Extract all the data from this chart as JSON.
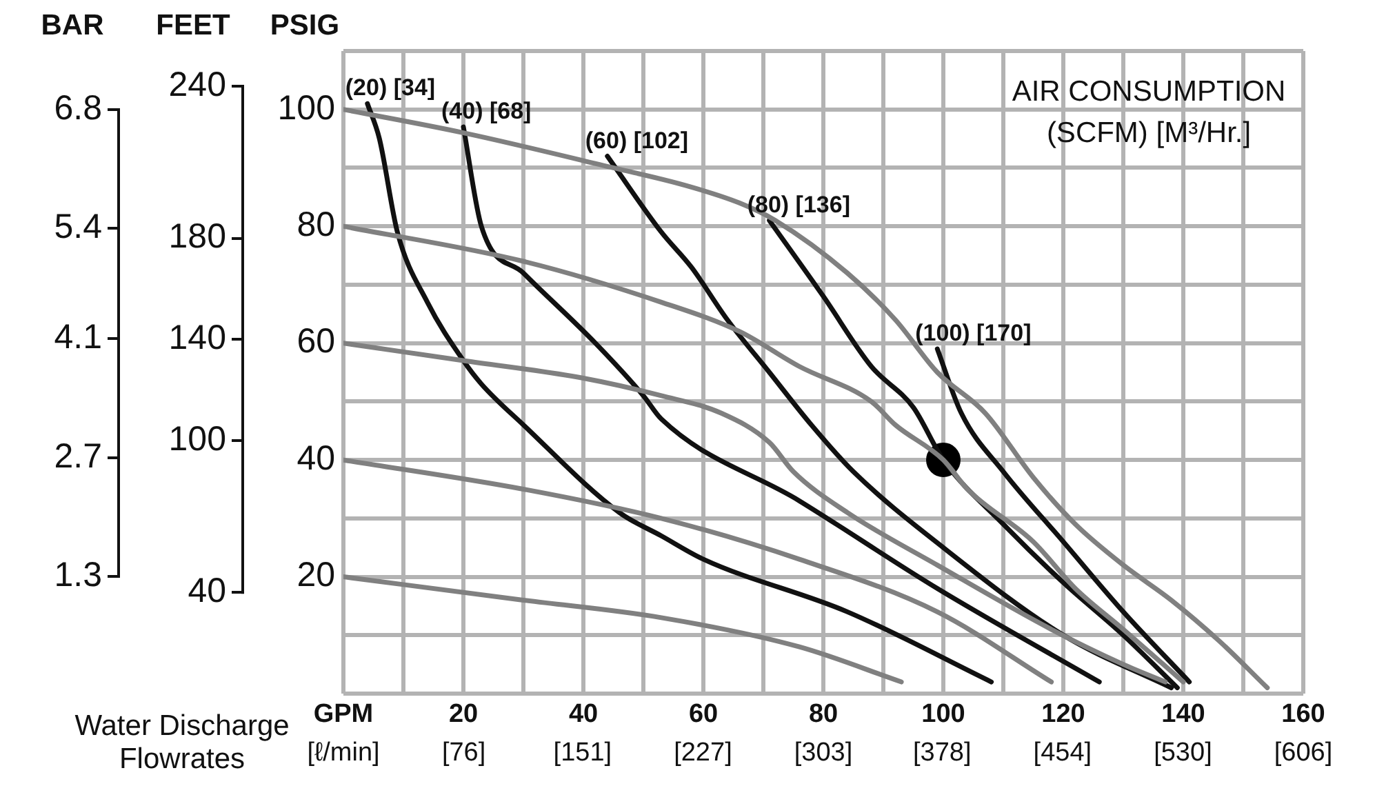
{
  "chart_data": {
    "type": "line",
    "xlabel": "Water Discharge Flowrates",
    "ylabel": "PSIG",
    "y2label": "BAR",
    "y3label": "FEET",
    "legend_title": "AIR CONSUMPTION\n(SCFM) [M³/Hr.]",
    "grid": true,
    "legend": false,
    "marker": "none",
    "line_style": "solid",
    "xlim": [
      0,
      160
    ],
    "xticks": [
      {
        "value": 0,
        "label": "GPM"
      },
      {
        "value": 10,
        "label": null
      },
      20,
      {
        "value": 30,
        "label": null
      },
      40,
      {
        "value": 50,
        "label": null
      },
      60,
      {
        "value": 70,
        "label": null
      },
      80,
      {
        "value": 90,
        "label": null
      },
      100,
      {
        "value": 110,
        "label": null
      },
      120,
      {
        "value": 130,
        "label": null
      },
      140,
      {
        "value": 150,
        "label": null
      },
      160
    ],
    "x2lim": [
      0,
      606
    ],
    "x2ticks": [
      {
        "value": 0,
        "label": "[ℓ/min]"
      },
      {
        "value": 76,
        "label": "[76]"
      },
      {
        "value": 151,
        "label": "[151]"
      },
      {
        "value": 227,
        "label": "[227]"
      },
      {
        "value": 303,
        "label": "[303]"
      },
      {
        "value": 378,
        "label": "[378]"
      },
      {
        "value": 454,
        "label": "[454]"
      },
      {
        "value": 530,
        "label": "[530]"
      },
      {
        "value": 606,
        "label": "[606]"
      }
    ],
    "ylim": [
      0,
      110
    ],
    "yticks": [
      {
        "value": 0,
        "label": null
      },
      {
        "value": 10,
        "label": null
      },
      20,
      {
        "value": 30,
        "label": null
      },
      40,
      {
        "value": 50,
        "label": null
      },
      60,
      {
        "value": 70,
        "label": null
      },
      80,
      {
        "value": 90,
        "label": null
      },
      100,
      {
        "value": 110,
        "label": null
      }
    ],
    "y2lim": [
      -0.08,
      7.49
    ],
    "y2ticks": [
      1.3,
      2.7,
      4.1,
      5.4,
      6.8
    ],
    "y3lim": [
      0,
      254
    ],
    "y3ticks": [
      40,
      100,
      140,
      180,
      240
    ],
    "series": [
      {
        "color": "#808080",
        "x": [
          0,
          20,
          45,
          57,
          66,
          72,
          84,
          92,
          99,
          107,
          115,
          122,
          130,
          138,
          146,
          154
        ],
        "values": [
          100,
          96,
          90,
          87,
          84,
          81,
          72,
          64,
          55,
          48,
          37,
          29,
          22,
          16,
          9,
          1
        ]
      },
      {
        "color": "#808080",
        "x": [
          0,
          30,
          53,
          66,
          76,
          88,
          92,
          100,
          104,
          115,
          122,
          130,
          140
        ],
        "values": [
          80,
          74,
          67,
          62,
          56,
          50,
          46,
          40,
          35,
          26,
          18,
          11,
          2
        ]
      },
      {
        "color": "#808080",
        "x": [
          0,
          20,
          40,
          53,
          63,
          71,
          75,
          84,
          99,
          118,
          130,
          137
        ],
        "values": [
          60,
          57,
          54,
          51,
          48,
          43,
          38,
          31,
          22,
          11,
          5,
          2
        ]
      },
      {
        "color": "#808080",
        "x": [
          0,
          30,
          53,
          76,
          99,
          118
        ],
        "values": [
          40,
          35,
          30,
          23,
          14,
          2
        ]
      },
      {
        "color": "#808080",
        "x": [
          0,
          30,
          53,
          76,
          93
        ],
        "values": [
          20,
          16,
          13,
          8,
          2
        ]
      },
      {
        "name": "(20) [34]",
        "color": "#111111",
        "x": [
          4,
          6,
          9,
          14,
          20,
          23,
          30,
          46,
          53,
          60,
          84,
          108
        ],
        "values": [
          101,
          95,
          79,
          67,
          57,
          53,
          46,
          31,
          27,
          23,
          14,
          2
        ]
      },
      {
        "name": "(40) [68]",
        "color": "#111111",
        "x": [
          20,
          23,
          30,
          42,
          50,
          53,
          76,
          99,
          126
        ],
        "values": [
          97,
          80,
          72,
          60,
          51,
          47,
          33,
          18,
          2
        ]
      },
      {
        "name": "(60) [102]",
        "color": "#111111",
        "x": [
          44,
          53,
          58,
          64,
          71,
          78,
          85,
          100,
          120,
          138
        ],
        "values": [
          92,
          79,
          73,
          64,
          55,
          46,
          38,
          25,
          10,
          1
        ]
      },
      {
        "name": "(80) [136]",
        "color": "#111111",
        "x": [
          71,
          80,
          88,
          95,
          100,
          110,
          120,
          130,
          139
        ],
        "values": [
          81,
          68,
          56,
          49,
          40,
          29,
          19,
          10,
          1
        ]
      },
      {
        "name": "(100) [170]",
        "color": "#111111",
        "x": [
          99,
          103,
          110,
          120,
          130,
          141
        ],
        "values": [
          59,
          48,
          38,
          26,
          14,
          2
        ]
      },
      {
        "type": "scatter",
        "marker": "circle",
        "color": "#000000",
        "x": [
          100
        ],
        "values": [
          40
        ]
      }
    ]
  }
}
